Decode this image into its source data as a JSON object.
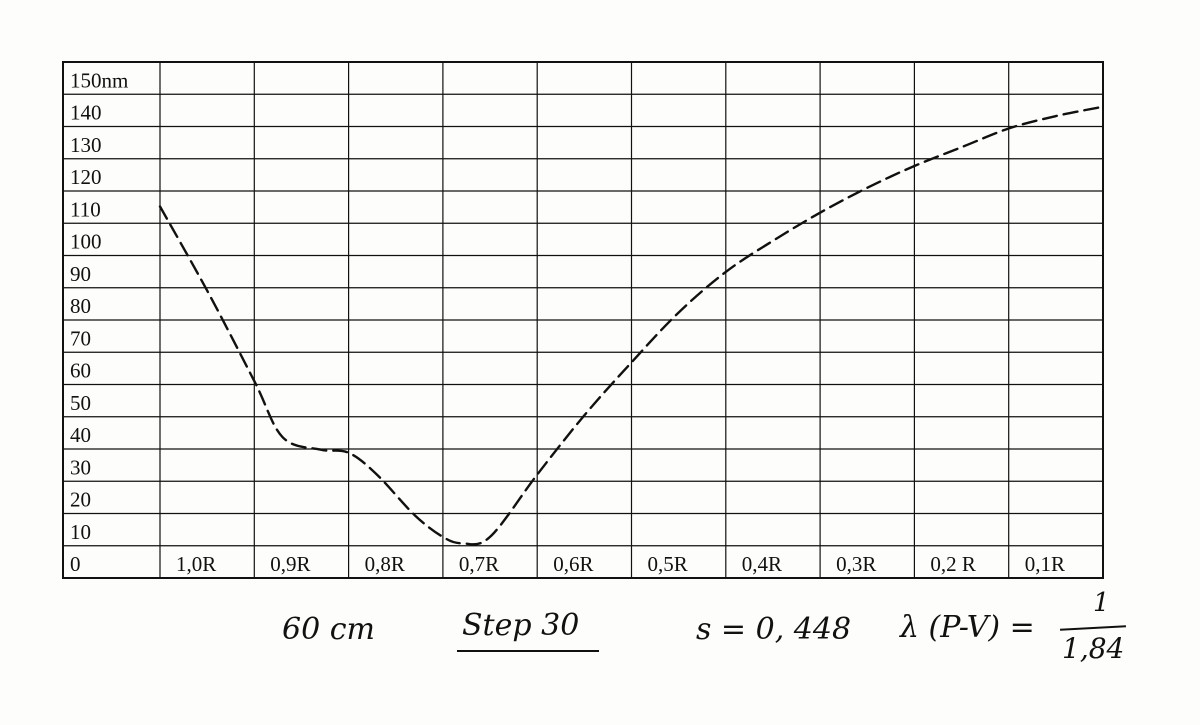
{
  "chart_data": {
    "type": "line",
    "y_unit_label": "150nm",
    "y_ticks": [
      "150nm",
      "140",
      "130",
      "120",
      "110",
      "100",
      "90",
      "80",
      "70",
      "60",
      "50",
      "40",
      "30",
      "20",
      "10",
      "0"
    ],
    "x_categories": [
      "1,0R",
      "0,9R",
      "0,8R",
      "0,7R",
      "0,6R",
      "0,5R",
      "0,4R",
      "0,3R",
      "0,2 R",
      "0,1R"
    ],
    "x_range": [
      1.0,
      0.0
    ],
    "ylim": [
      0,
      150
    ],
    "grid": true,
    "line_style": "dashed",
    "series": [
      {
        "x": [
          1.0,
          0.95,
          0.9,
          0.87,
          0.83,
          0.8,
          0.77,
          0.73,
          0.7,
          0.68,
          0.65,
          0.6,
          0.55,
          0.5,
          0.45,
          0.4,
          0.35,
          0.3,
          0.25,
          0.2,
          0.15,
          0.1,
          0.05,
          0.0
        ],
        "y": [
          114,
          87,
          58,
          40,
          36,
          35,
          28,
          15,
          8,
          6,
          8,
          28,
          47,
          64,
          80,
          93,
          103,
          112,
          120,
          127,
          133,
          139,
          143,
          146
        ]
      }
    ]
  },
  "notes": {
    "distance": "60 cm",
    "step": "Step 30",
    "s_value": "s = 0, 448",
    "lambda_label": "λ (P-V) =",
    "lambda_numerator": "1",
    "lambda_denominator": "1,84"
  }
}
